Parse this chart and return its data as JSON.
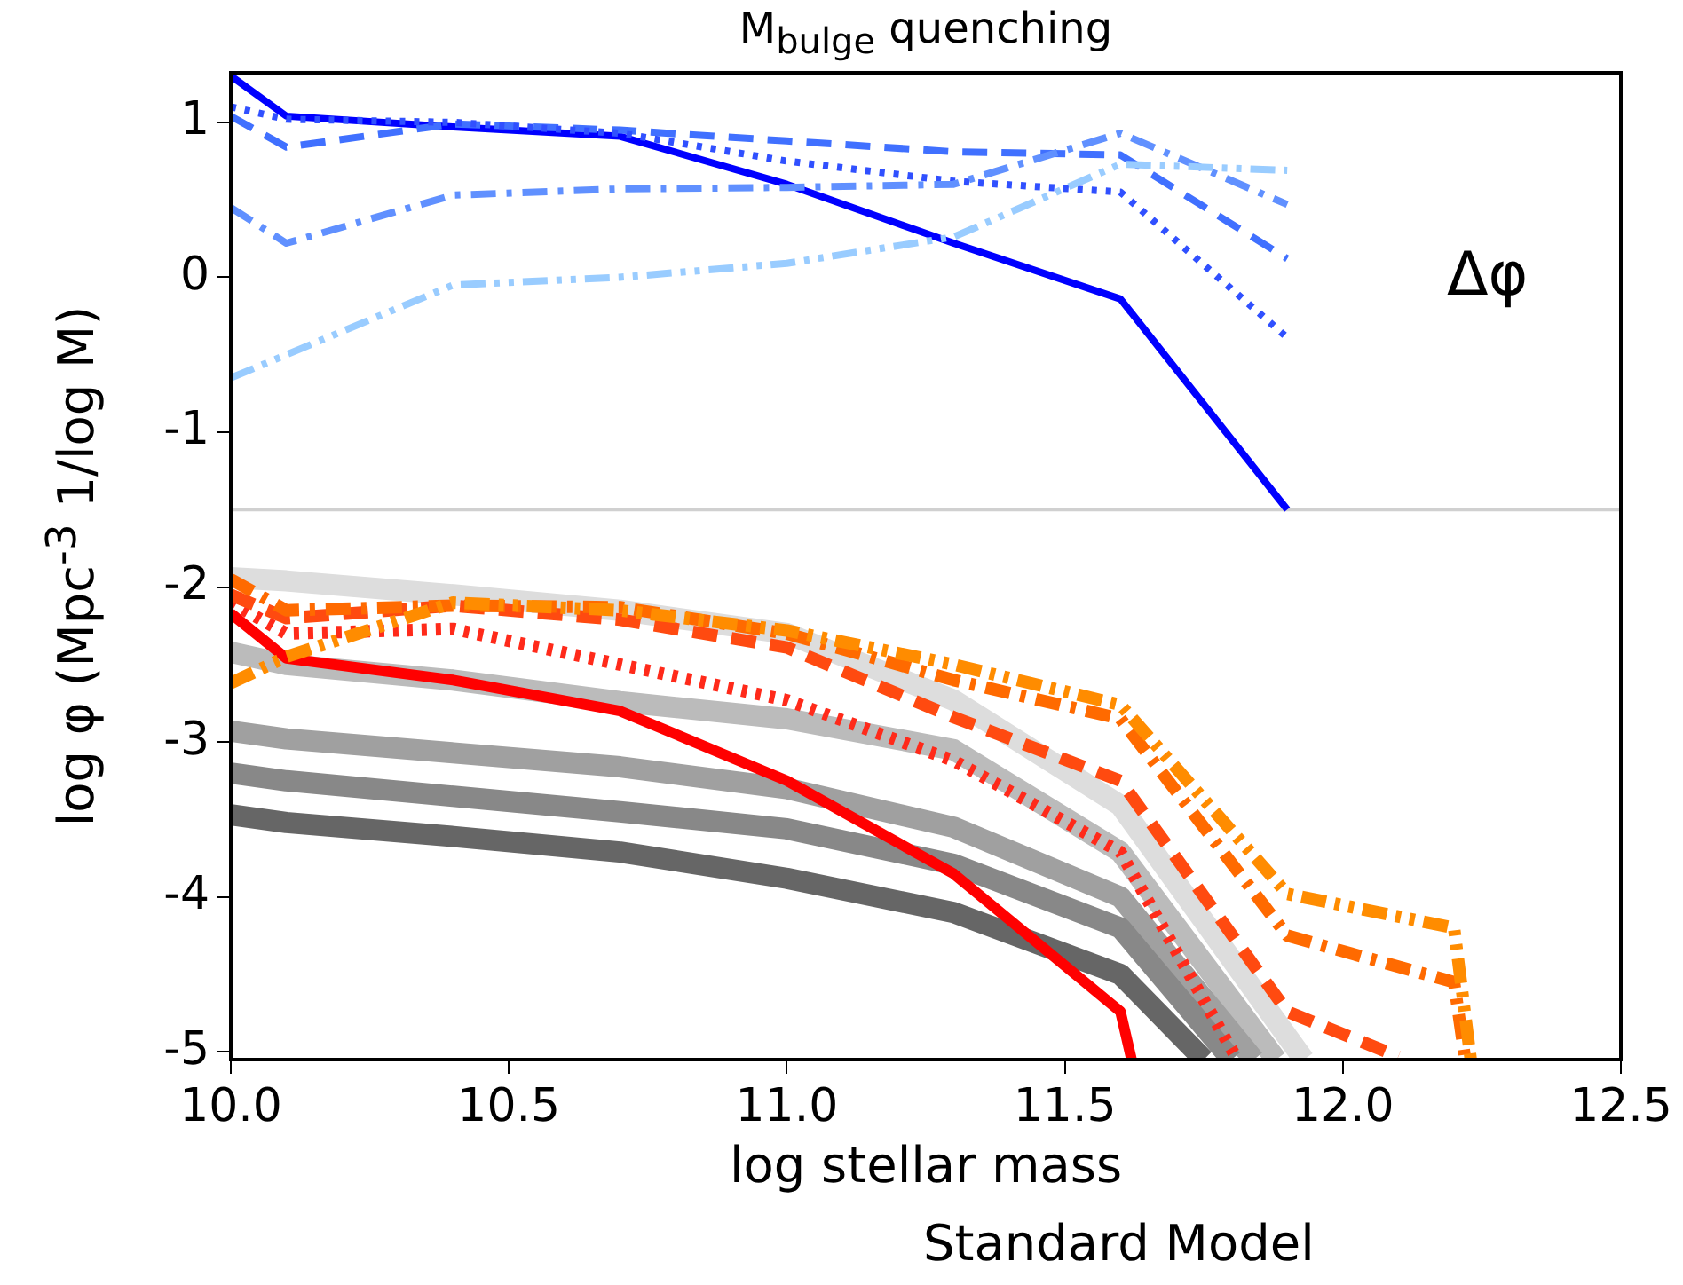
{
  "chart_data": {
    "type": "line",
    "title": "M$_{bulge}$ quenching",
    "xlabel": "log stellar mass",
    "ylabel": "log φ (Mpc$^{-3}$ 1/log M)",
    "annotations": [
      "Δφ",
      "Standard Model"
    ],
    "xlim": [
      10,
      12.5
    ],
    "xticks": [
      {
        "value": 10,
        "label": "10.0"
      },
      {
        "value": 10.5,
        "label": "10.5"
      },
      {
        "value": 11,
        "label": "11.0"
      },
      {
        "value": 11.5,
        "label": "11.5"
      },
      {
        "value": 12,
        "label": "12.0"
      },
      {
        "value": 12.5,
        "label": "12.5"
      }
    ],
    "ylim": [
      -5.05,
      1.32
    ],
    "yticks": [
      -5,
      -4,
      -3,
      -2,
      -1,
      0,
      1
    ],
    "grid": false,
    "legend": false,
    "marker": "none",
    "ref_lines": [
      {
        "axis": "y",
        "value": -1.5,
        "color": "#d0d0d0"
      }
    ],
    "series": [
      {
        "color": "#dddddd",
        "line_style": "solid",
        "x": [
          10,
          10.1,
          10.4,
          10.7,
          11,
          11.3,
          11.6,
          11.93
        ],
        "values": [
          -1.94,
          -1.96,
          -2.05,
          -2.15,
          -2.3,
          -2.73,
          -3.41,
          -5.05
        ]
      },
      {
        "color": "#bbbbbb",
        "line_style": "solid",
        "x": [
          10,
          10.1,
          10.4,
          10.7,
          11,
          11.3,
          11.6,
          11.88
        ],
        "values": [
          -2.42,
          -2.5,
          -2.6,
          -2.74,
          -2.85,
          -3.05,
          -3.71,
          -5.05
        ]
      },
      {
        "color": "#a0a0a0",
        "line_style": "solid",
        "x": [
          10,
          10.1,
          10.4,
          10.7,
          11,
          11.3,
          11.6,
          11.84
        ],
        "values": [
          -2.93,
          -2.98,
          -3.07,
          -3.16,
          -3.3,
          -3.55,
          -4.0,
          -5.05
        ]
      },
      {
        "color": "#888888",
        "line_style": "solid",
        "x": [
          10,
          10.1,
          10.4,
          10.7,
          11,
          11.3,
          11.6,
          11.8
        ],
        "values": [
          -3.2,
          -3.25,
          -3.35,
          -3.45,
          -3.56,
          -3.79,
          -4.2,
          -5.05
        ]
      },
      {
        "color": "#666666",
        "line_style": "solid",
        "x": [
          10,
          10.1,
          10.4,
          10.7,
          11,
          11.3,
          11.6,
          11.75
        ],
        "values": [
          -3.47,
          -3.52,
          -3.61,
          -3.71,
          -3.88,
          -4.1,
          -4.5,
          -5.05
        ]
      },
      {
        "color": "#ff0000",
        "line_style": "solid",
        "x": [
          10,
          10.1,
          10.4,
          10.7,
          11,
          11.3,
          11.6,
          11.62
        ],
        "values": [
          -2.17,
          -2.46,
          -2.6,
          -2.8,
          -3.25,
          -3.85,
          -4.74,
          -5.05
        ]
      },
      {
        "color": "#ff2a1a",
        "line_style": "dotted",
        "x": [
          10,
          10.1,
          10.4,
          10.7,
          11,
          11.3,
          11.6,
          11.81
        ],
        "values": [
          -2.1,
          -2.3,
          -2.27,
          -2.5,
          -2.73,
          -3.12,
          -3.71,
          -5.05
        ]
      },
      {
        "color": "#ff4a10",
        "line_style": "dashed",
        "x": [
          10,
          10.1,
          10.4,
          10.7,
          11,
          11.3,
          11.6,
          11.9,
          12.1
        ],
        "values": [
          -2.05,
          -2.2,
          -2.12,
          -2.21,
          -2.39,
          -2.84,
          -3.25,
          -4.74,
          -5.03
        ]
      },
      {
        "color": "#ff6a00",
        "line_style": "dashdot",
        "x": [
          10,
          10.1,
          10.4,
          10.7,
          11,
          11.3,
          11.6,
          11.9,
          12.2,
          12.22
        ],
        "values": [
          -1.95,
          -2.15,
          -2.12,
          -2.13,
          -2.3,
          -2.6,
          -2.85,
          -4.25,
          -4.55,
          -5.05
        ]
      },
      {
        "color": "#ff8c00",
        "line_style": "dashdotdot",
        "x": [
          10,
          10.1,
          10.4,
          10.7,
          11,
          11.3,
          11.6,
          11.9,
          12.2,
          12.23
        ],
        "values": [
          -2.62,
          -2.45,
          -2.1,
          -2.15,
          -2.28,
          -2.5,
          -2.76,
          -3.98,
          -4.2,
          -5.05
        ]
      },
      {
        "color": "#0000ff",
        "line_style": "solid",
        "x": [
          10,
          10.1,
          10.4,
          10.7,
          11,
          11.3,
          11.6,
          11.9
        ],
        "values": [
          1.3,
          1.04,
          0.97,
          0.91,
          0.6,
          0.22,
          -0.14,
          -1.5
        ]
      },
      {
        "color": "#4070ff",
        "line_style": "dashed",
        "x": [
          10,
          10.1,
          10.4,
          10.7,
          11,
          11.3,
          11.6,
          11.9
        ],
        "values": [
          1.04,
          0.84,
          0.99,
          0.95,
          0.88,
          0.81,
          0.79,
          0.12
        ]
      },
      {
        "color": "#3050ff",
        "line_style": "dotted",
        "x": [
          10,
          10.1,
          10.4,
          10.7,
          11,
          11.3,
          11.6,
          11.9
        ],
        "values": [
          1.1,
          1.02,
          1.0,
          0.93,
          0.75,
          0.62,
          0.55,
          -0.39
        ]
      },
      {
        "color": "#6090ff",
        "line_style": "dashdot",
        "x": [
          10,
          10.1,
          10.4,
          10.7,
          11,
          11.3,
          11.6,
          11.9
        ],
        "values": [
          0.45,
          0.22,
          0.53,
          0.57,
          0.58,
          0.6,
          0.93,
          0.47
        ]
      },
      {
        "color": "#99ccff",
        "line_style": "dashdotdot",
        "x": [
          10,
          10.1,
          10.4,
          10.7,
          11,
          11.3,
          11.6,
          11.9
        ],
        "values": [
          -0.65,
          -0.5,
          -0.05,
          0.0,
          0.09,
          0.26,
          0.73,
          0.69
        ]
      }
    ]
  }
}
